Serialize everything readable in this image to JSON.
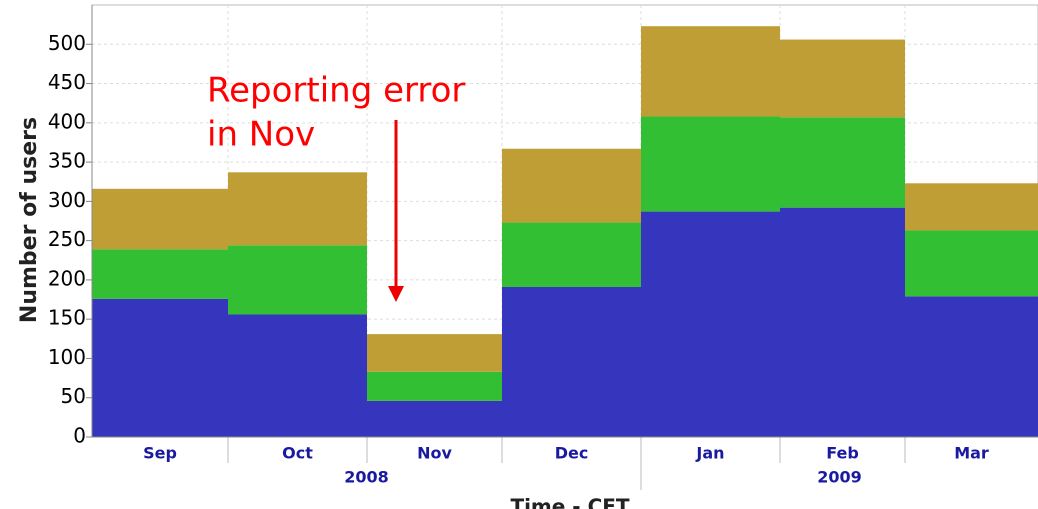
{
  "chart_data": {
    "type": "stacked_bar",
    "y_label": "Number of users",
    "x_label": "Time - CET",
    "annotation": [
      "Reporting error",
      "in Nov"
    ],
    "categories": [
      "Sep",
      "Oct",
      "Nov",
      "Dec",
      "Jan",
      "Feb",
      "Mar"
    ],
    "years": [
      "2008",
      "2009"
    ],
    "series": [
      {
        "color": "#3535bd",
        "values": [
          176,
          156,
          46,
          191,
          287,
          292,
          179
        ]
      },
      {
        "color": "#33bf33",
        "values": [
          63,
          88,
          37,
          82,
          121,
          115,
          84
        ]
      },
      {
        "color": "#bf9f35",
        "values": [
          77,
          93,
          48,
          94,
          115,
          99,
          60
        ]
      }
    ],
    "ylim": [
      0,
      550
    ],
    "yticks": [
      0,
      50,
      100,
      150,
      200,
      250,
      300,
      350,
      400,
      450,
      500
    ],
    "grid": true
  }
}
